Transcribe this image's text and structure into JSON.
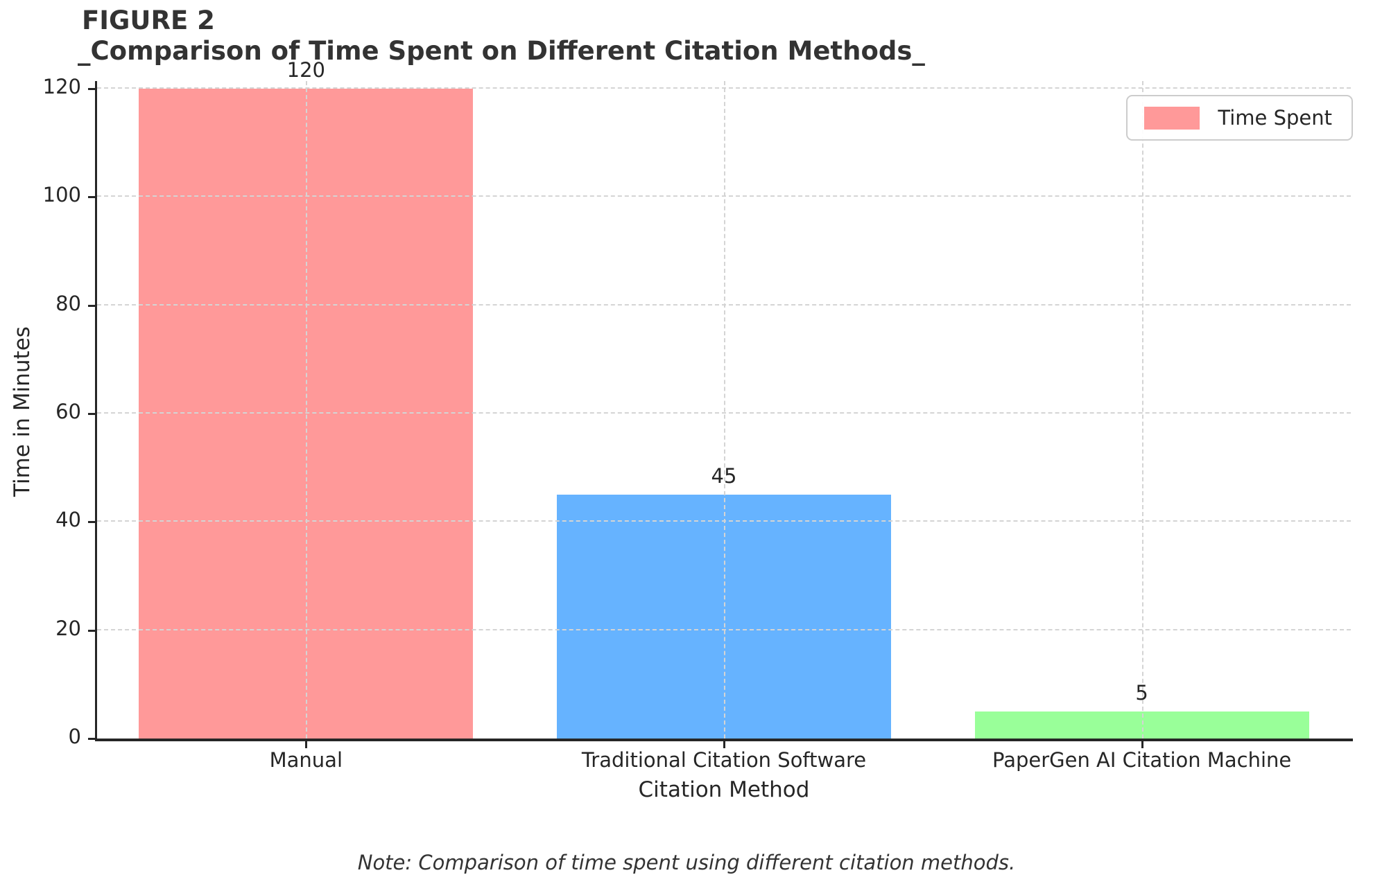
{
  "header": {
    "figure_label": "FIGURE 2",
    "chart_title": "_Comparison of Time Spent on Different Citation Methods_"
  },
  "chart_data": {
    "type": "bar",
    "title": "FIGURE 2\n_Comparison of Time Spent on Different Citation Methods_",
    "categories": [
      "Manual",
      "Traditional Citation Software",
      "PaperGen AI Citation Machine"
    ],
    "series": [
      {
        "name": "Time Spent",
        "values": [
          120,
          45,
          5
        ]
      }
    ],
    "value_labels": [
      "120",
      "45",
      "5"
    ],
    "bar_colors": [
      "#ff9999",
      "#66b3ff",
      "#99ff99"
    ],
    "xlabel": "Citation Method",
    "ylabel": "Time in Minutes",
    "yticks": [
      0,
      20,
      40,
      60,
      80,
      100,
      120
    ],
    "ylim": [
      0,
      121.4
    ],
    "grid": true,
    "grid_style": "dashed",
    "grid_color": "#d4d4d4",
    "legend": {
      "position": "upper right",
      "entries": [
        {
          "label": "Time Spent",
          "color": "#ff9999"
        }
      ]
    },
    "note": "Note: Comparison of time spent using different citation methods.",
    "text_color": "#333333"
  }
}
